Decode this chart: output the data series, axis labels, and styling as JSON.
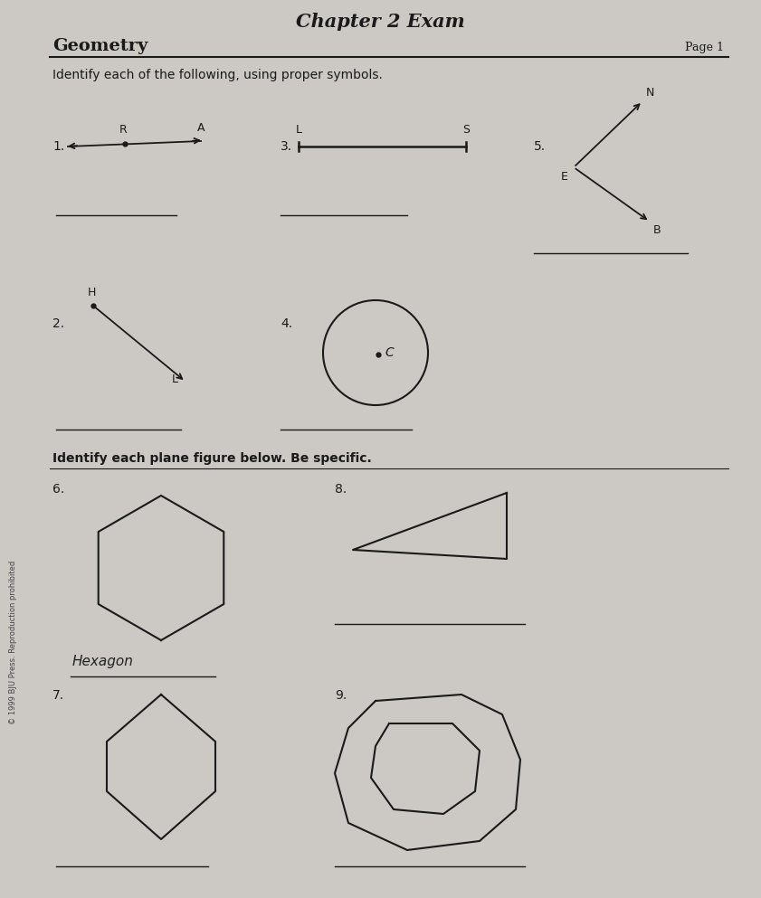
{
  "title": "Chapter 2 Exam",
  "subtitle_left": "Geometry",
  "subtitle_right": "Page 1",
  "bg_color": "#ccc8c4",
  "line_color": "#1a1a1a",
  "text_color": "#1a1a1a",
  "section1_label": "Identify each of the following, using proper symbols.",
  "section2_label": "Identify each plane figure below. Be specific.",
  "copyright": "© 1999 BJU Press. Reproduction prohibited",
  "hexagon_answer": "Hexagon"
}
